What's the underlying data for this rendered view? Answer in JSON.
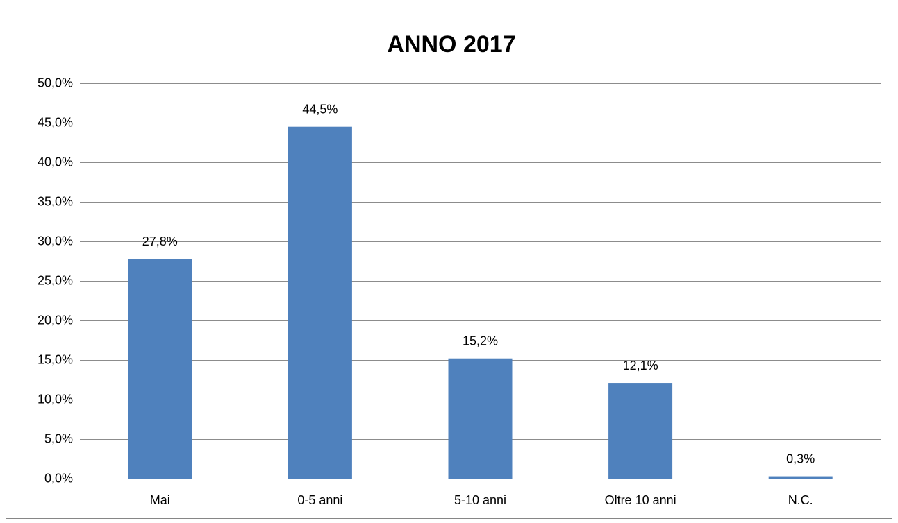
{
  "chart_data": {
    "type": "bar",
    "title": "ANNO 2017",
    "categories": [
      "Mai",
      "0-5 anni",
      "5-10 anni",
      "Oltre 10 anni",
      "N.C."
    ],
    "values": [
      27.8,
      44.5,
      15.2,
      12.1,
      0.3
    ],
    "value_labels": [
      "27,8%",
      "44,5%",
      "15,2%",
      "12,1%",
      "0,3%"
    ],
    "color": "#4f81bd",
    "ylim": [
      0,
      50
    ],
    "yticks": [
      {
        "value": 0,
        "label": "0,0%"
      },
      {
        "value": 5,
        "label": "5,0%"
      },
      {
        "value": 10,
        "label": "10,0%"
      },
      {
        "value": 15,
        "label": "15,0%"
      },
      {
        "value": 20,
        "label": "20,0%"
      },
      {
        "value": 25,
        "label": "25,0%"
      },
      {
        "value": 30,
        "label": "30,0%"
      },
      {
        "value": 35,
        "label": "35,0%"
      },
      {
        "value": 40,
        "label": "40,0%"
      },
      {
        "value": 45,
        "label": "45,0%"
      },
      {
        "value": 50,
        "label": "50,0%"
      }
    ],
    "grid": true
  }
}
